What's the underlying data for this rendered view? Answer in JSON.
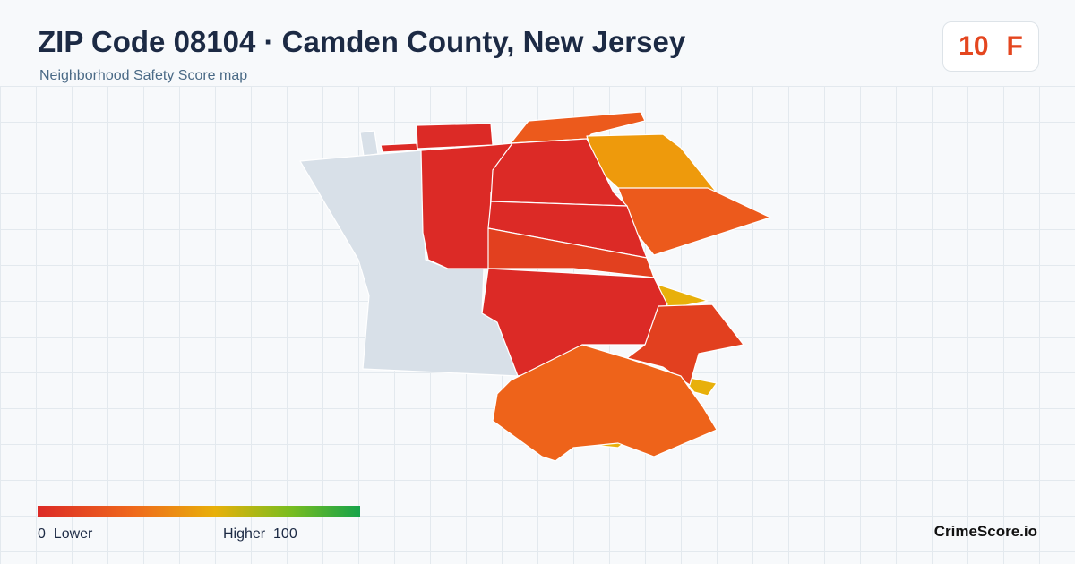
{
  "header": {
    "title": "ZIP Code 08104 · Camden County, New Jersey",
    "subtitle": "Neighborhood Safety Score map"
  },
  "score": {
    "value": "10",
    "grade": "F"
  },
  "legend": {
    "min": 0,
    "min_label": "Lower",
    "max_label": "Higher",
    "max": 100
  },
  "brand": "CrimeScore.io"
}
